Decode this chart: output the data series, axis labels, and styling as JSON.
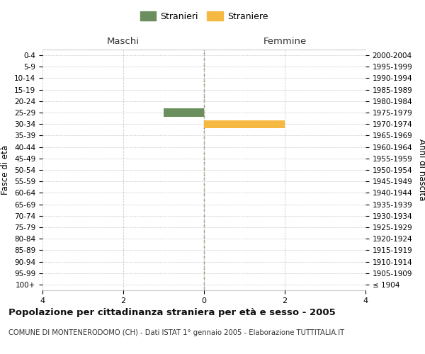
{
  "age_groups": [
    "100+",
    "95-99",
    "90-94",
    "85-89",
    "80-84",
    "75-79",
    "70-74",
    "65-69",
    "60-64",
    "55-59",
    "50-54",
    "45-49",
    "40-44",
    "35-39",
    "30-34",
    "25-29",
    "20-24",
    "15-19",
    "10-14",
    "5-9",
    "0-4"
  ],
  "birth_years": [
    "≤ 1904",
    "1905-1909",
    "1910-1914",
    "1915-1919",
    "1920-1924",
    "1925-1929",
    "1930-1934",
    "1935-1939",
    "1940-1944",
    "1945-1949",
    "1950-1954",
    "1955-1959",
    "1960-1964",
    "1965-1969",
    "1970-1974",
    "1975-1979",
    "1980-1984",
    "1985-1989",
    "1990-1994",
    "1995-1999",
    "2000-2004"
  ],
  "maschi": [
    0,
    0,
    0,
    0,
    0,
    0,
    0,
    0,
    0,
    0,
    0,
    0,
    0,
    0,
    0,
    1,
    0,
    0,
    0,
    0,
    0
  ],
  "femmine": [
    0,
    0,
    0,
    0,
    0,
    0,
    0,
    0,
    0,
    0,
    0,
    0,
    0,
    0,
    2,
    0,
    0,
    0,
    0,
    0,
    0
  ],
  "color_maschi": "#6b8e5e",
  "color_femmine": "#f5b942",
  "xlim": 4,
  "title": "Popolazione per cittadinanza straniera per età e sesso - 2005",
  "subtitle": "COMUNE DI MONTENERODOMO (CH) - Dati ISTAT 1° gennaio 2005 - Elaborazione TUTTITALIA.IT",
  "ylabel_left": "Fasce di età",
  "ylabel_right": "Anni di nascita",
  "legend_maschi": "Stranieri",
  "legend_femmine": "Straniere",
  "maschi_header": "Maschi",
  "femmine_header": "Femmine",
  "bg_color": "#ffffff",
  "grid_color": "#cccccc",
  "bar_height": 0.7
}
